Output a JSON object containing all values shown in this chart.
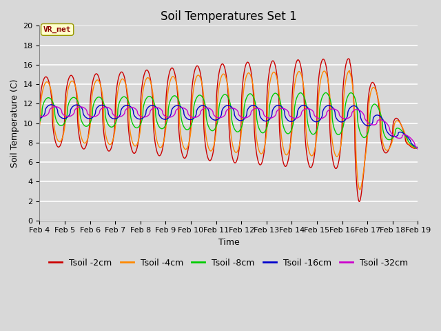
{
  "title": "Soil Temperatures Set 1",
  "xlabel": "Time",
  "ylabel": "Soil Temperature (C)",
  "ylim": [
    0,
    20
  ],
  "x_tick_labels": [
    "Feb 4",
    "Feb 5",
    "Feb 6",
    "Feb 7",
    "Feb 8",
    "Feb 9",
    "Feb 10",
    "Feb 11",
    "Feb 12",
    "Feb 13",
    "Feb 14",
    "Feb 15",
    "Feb 16",
    "Feb 17",
    "Feb 18",
    "Feb 19"
  ],
  "annotation_text": "VR_met",
  "series": [
    {
      "label": "Tsoil -2cm",
      "color": "#cc0000"
    },
    {
      "label": "Tsoil -4cm",
      "color": "#ff8800"
    },
    {
      "label": "Tsoil -8cm",
      "color": "#00cc00"
    },
    {
      "label": "Tsoil -16cm",
      "color": "#0000cc"
    },
    {
      "label": "Tsoil -32cm",
      "color": "#cc00cc"
    }
  ],
  "bg_color": "#d8d8d8",
  "plot_bg_color": "#d8d8d8",
  "grid_color": "#ffffff",
  "title_fontsize": 12,
  "axis_fontsize": 9,
  "tick_fontsize": 8,
  "legend_fontsize": 9
}
